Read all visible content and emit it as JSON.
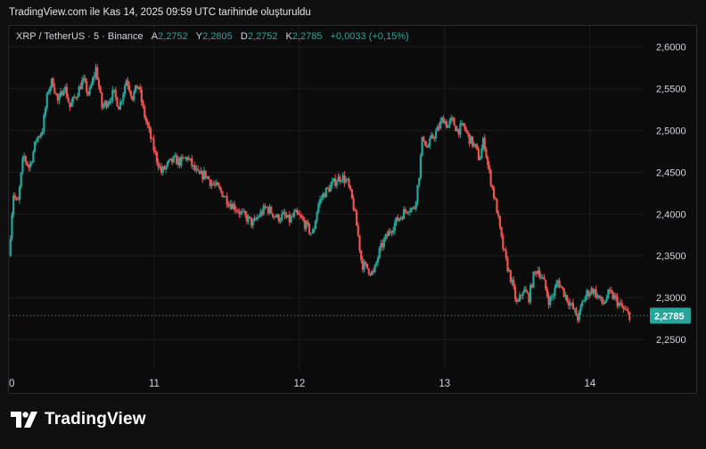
{
  "header": {
    "caption": "TradingView.com ile Kas 14, 2025 09:59 UTC tarihinde oluşturuldu"
  },
  "legend": {
    "symbol": "XRP / TetherUS · 5 · Binance",
    "open_label": "A",
    "open_value": "2,2752",
    "high_label": "Y",
    "high_value": "2,2805",
    "low_label": "D",
    "low_value": "2,2752",
    "close_label": "K",
    "close_value": "2,2785",
    "change": "+0,0033 (+0,15%)"
  },
  "brand": {
    "name": "TradingView"
  },
  "colors": {
    "up": "#26a69a",
    "down": "#ef5350",
    "price_tag": "#26a69a",
    "grid": "#1c1c1c",
    "axis_text": "#d1d4dc"
  },
  "chart_data": {
    "type": "candlestick",
    "symbol": "XRP / TetherUS",
    "interval": "5",
    "exchange": "Binance",
    "x_tick_labels": [
      "0",
      "11",
      "12",
      "13",
      "14"
    ],
    "x_ticks": [
      0,
      1,
      2,
      3,
      4
    ],
    "xlim": [
      0,
      4.37
    ],
    "y_tick_labels": [
      "2,6000",
      "2,5500",
      "2,5000",
      "2,4500",
      "2,4000",
      "2,3500",
      "2,3000",
      "2,2500"
    ],
    "y_ticks": [
      2.6,
      2.55,
      2.5,
      2.45,
      2.4,
      2.35,
      2.3,
      2.25
    ],
    "ylim": [
      2.215,
      2.625
    ],
    "last_price": 2.2785,
    "last_price_label": "2,2785",
    "grid": true,
    "close_path": [
      [
        0.0,
        2.35
      ],
      [
        0.03,
        2.425
      ],
      [
        0.06,
        2.41
      ],
      [
        0.1,
        2.47
      ],
      [
        0.14,
        2.455
      ],
      [
        0.19,
        2.49
      ],
      [
        0.23,
        2.5
      ],
      [
        0.27,
        2.548
      ],
      [
        0.3,
        2.56
      ],
      [
        0.34,
        2.532
      ],
      [
        0.38,
        2.555
      ],
      [
        0.42,
        2.528
      ],
      [
        0.47,
        2.545
      ],
      [
        0.51,
        2.56
      ],
      [
        0.55,
        2.542
      ],
      [
        0.6,
        2.575
      ],
      [
        0.64,
        2.528
      ],
      [
        0.68,
        2.535
      ],
      [
        0.72,
        2.545
      ],
      [
        0.76,
        2.528
      ],
      [
        0.81,
        2.562
      ],
      [
        0.85,
        2.54
      ],
      [
        0.89,
        2.555
      ],
      [
        0.93,
        2.52
      ],
      [
        0.97,
        2.495
      ],
      [
        1.01,
        2.47
      ],
      [
        1.05,
        2.45
      ],
      [
        1.1,
        2.46
      ],
      [
        1.14,
        2.465
      ],
      [
        1.18,
        2.462
      ],
      [
        1.23,
        2.468
      ],
      [
        1.27,
        2.455
      ],
      [
        1.31,
        2.445
      ],
      [
        1.35,
        2.448
      ],
      [
        1.39,
        2.438
      ],
      [
        1.43,
        2.432
      ],
      [
        1.47,
        2.425
      ],
      [
        1.51,
        2.415
      ],
      [
        1.56,
        2.408
      ],
      [
        1.6,
        2.4
      ],
      [
        1.64,
        2.395
      ],
      [
        1.68,
        2.388
      ],
      [
        1.72,
        2.398
      ],
      [
        1.77,
        2.408
      ],
      [
        1.81,
        2.402
      ],
      [
        1.85,
        2.395
      ],
      [
        1.89,
        2.398
      ],
      [
        1.93,
        2.392
      ],
      [
        1.97,
        2.4
      ],
      [
        2.01,
        2.395
      ],
      [
        2.05,
        2.385
      ],
      [
        2.09,
        2.375
      ],
      [
        2.13,
        2.412
      ],
      [
        2.17,
        2.425
      ],
      [
        2.21,
        2.432
      ],
      [
        2.25,
        2.44
      ],
      [
        2.29,
        2.445
      ],
      [
        2.33,
        2.438
      ],
      [
        2.37,
        2.412
      ],
      [
        2.4,
        2.38
      ],
      [
        2.43,
        2.34
      ],
      [
        2.47,
        2.335
      ],
      [
        2.51,
        2.328
      ],
      [
        2.55,
        2.355
      ],
      [
        2.59,
        2.37
      ],
      [
        2.63,
        2.382
      ],
      [
        2.67,
        2.392
      ],
      [
        2.71,
        2.4
      ],
      [
        2.75,
        2.408
      ],
      [
        2.79,
        2.405
      ],
      [
        2.82,
        2.44
      ],
      [
        2.85,
        2.495
      ],
      [
        2.88,
        2.478
      ],
      [
        2.91,
        2.49
      ],
      [
        2.95,
        2.5
      ],
      [
        2.99,
        2.515
      ],
      [
        3.02,
        2.505
      ],
      [
        3.05,
        2.512
      ],
      [
        3.09,
        2.5
      ],
      [
        3.13,
        2.505
      ],
      [
        3.17,
        2.49
      ],
      [
        3.21,
        2.48
      ],
      [
        3.24,
        2.465
      ],
      [
        3.27,
        2.49
      ],
      [
        3.3,
        2.455
      ],
      [
        3.33,
        2.43
      ],
      [
        3.36,
        2.405
      ],
      [
        3.39,
        2.37
      ],
      [
        3.42,
        2.345
      ],
      [
        3.46,
        2.32
      ],
      [
        3.5,
        2.29
      ],
      [
        3.54,
        2.31
      ],
      [
        3.58,
        2.3
      ],
      [
        3.61,
        2.325
      ],
      [
        3.64,
        2.335
      ],
      [
        3.68,
        2.32
      ],
      [
        3.72,
        2.295
      ],
      [
        3.75,
        2.305
      ],
      [
        3.78,
        2.32
      ],
      [
        3.81,
        2.31
      ],
      [
        3.84,
        2.3
      ],
      [
        3.88,
        2.288
      ],
      [
        3.92,
        2.275
      ],
      [
        3.95,
        2.295
      ],
      [
        3.98,
        2.305
      ],
      [
        4.02,
        2.31
      ],
      [
        4.06,
        2.3
      ],
      [
        4.09,
        2.292
      ],
      [
        4.13,
        2.305
      ],
      [
        4.17,
        2.3
      ],
      [
        4.21,
        2.29
      ],
      [
        4.25,
        2.282
      ],
      [
        4.28,
        2.2785
      ]
    ]
  }
}
